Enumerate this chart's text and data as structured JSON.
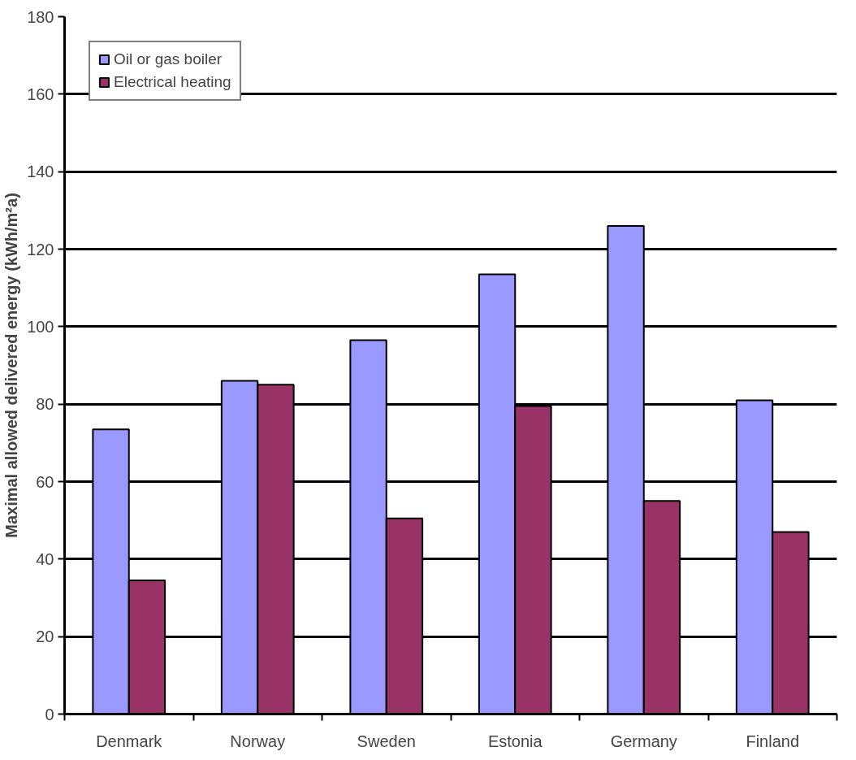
{
  "chart_data": {
    "type": "bar",
    "ylabel": "Maximal allowed delivered energy (kWh/m²a)",
    "categories": [
      "Denmark",
      "Norway",
      "Sweden",
      "Estonia",
      "Germany",
      "Finland"
    ],
    "series": [
      {
        "name": "Oil or gas boiler",
        "color": "#9999ff",
        "values": [
          73.5,
          86,
          96.5,
          113.5,
          126,
          81
        ]
      },
      {
        "name": "Electrical heating",
        "color": "#993366",
        "values": [
          34.5,
          85,
          50.5,
          79.5,
          55,
          47
        ]
      }
    ],
    "ylim": [
      0,
      180
    ],
    "yticks": [
      0,
      20,
      40,
      60,
      80,
      100,
      120,
      140,
      160,
      180
    ],
    "grid": "y",
    "legend": "top left"
  }
}
